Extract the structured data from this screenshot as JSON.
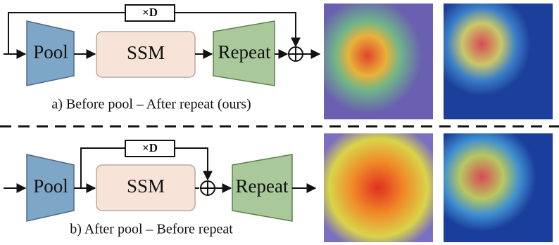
{
  "panels": [
    {
      "repeat_label": "×D",
      "blocks": [
        "Pool",
        "SSM",
        "Repeat"
      ],
      "caption": "a) Before pool – After repeat (ours)"
    },
    {
      "repeat_label": "×D",
      "blocks": [
        "Pool",
        "SSM",
        "Repeat"
      ],
      "caption": "b) After pool – Before repeat"
    }
  ]
}
